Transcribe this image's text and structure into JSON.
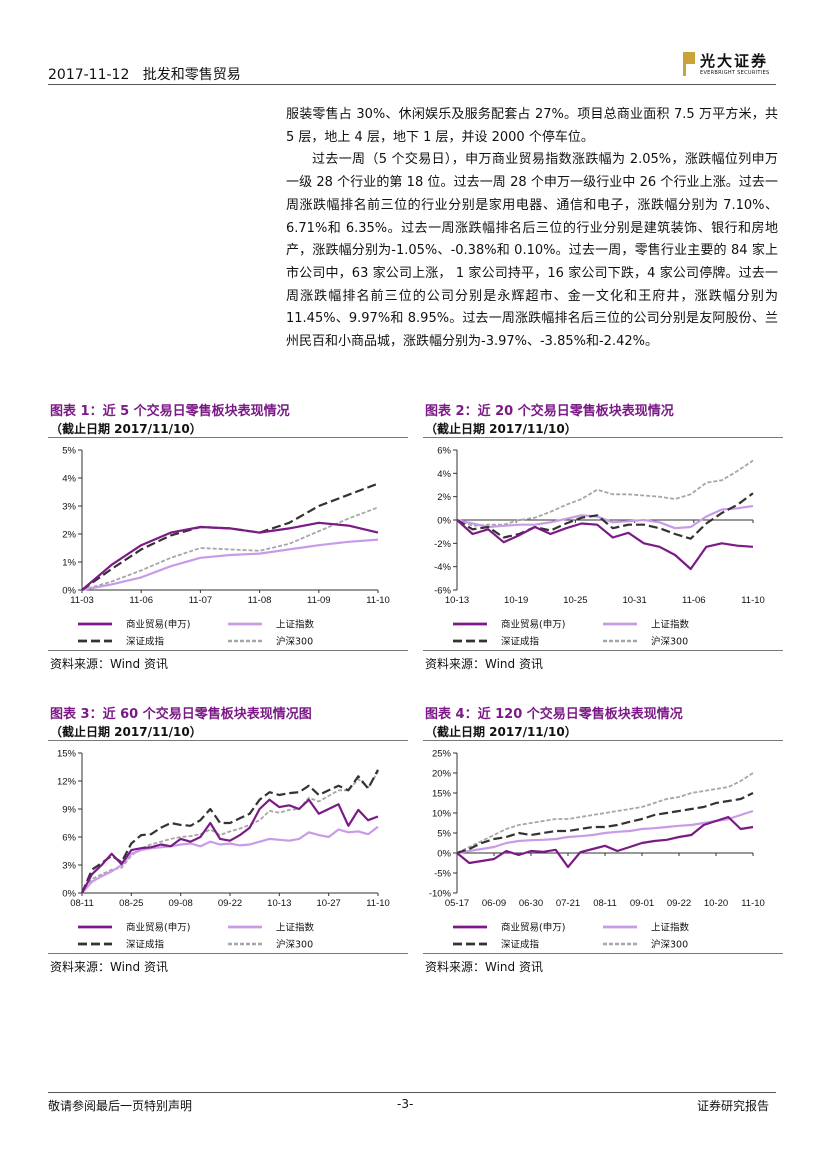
{
  "header": {
    "date": "2017-11-12",
    "title": "批发和零售贸易"
  },
  "logo": {
    "cn": "光大证券",
    "en": "EVERBRIGHT SECURITIES"
  },
  "body": {
    "p1": "服装零售占 30%、休闲娱乐及服务配套占 27%。项目总商业面积 7.5 万平方米，共 5 层，地上 4 层，地下 1 层，并设 2000 个停车位。",
    "p2": "过去一周（5 个交易日），申万商业贸易指数涨跌幅为 2.05%，涨跌幅位列申万一级 28 个行业的第 18 位。过去一周 28 个申万一级行业中 26 个行业上涨。过去一周涨跌幅排名前三位的行业分别是家用电器、通信和电子，涨跌幅分别为 7.10%、6.71%和 6.35%。过去一周涨跌幅排名后三位的行业分别是建筑装饰、银行和房地产，涨跌幅分别为-1.05%、-0.38%和 0.10%。过去一周，零售行业主要的 84 家上市公司中，63 家公司上涨， 1 家公司持平，16 家公司下跌，4 家公司停牌。过去一周涨跌幅排名前三位的公司分别是永辉超市、金一文化和王府井，涨跌幅分别为 11.45%、9.97%和 8.95%。过去一周涨跌幅排名后三位的公司分别是友阿股份、兰州民百和小商品城，涨跌幅分别为-3.97%、-3.85%和-2.42%。"
  },
  "colors": {
    "shangye": "#7b1a86",
    "shangzheng": "#c89be8",
    "shenzheng": "#333333",
    "hushen": "#a6a6a6",
    "title": "#7b1a86",
    "logo": "#c9a23a"
  },
  "charts": [
    {
      "title": "图表 1：近 5 个交易日零售板块表现情况",
      "date": "（截止日期 2017/11/10）",
      "source": "资料来源：Wind 资讯"
    },
    {
      "title": "图表 2：近 20 个交易日零售板块表现情况",
      "date": "（截止日期 2017/11/10）",
      "source": "资料来源：Wind 资讯"
    },
    {
      "title": "图表 3：近 60 个交易日零售板块表现情况图",
      "date": "（截止日期 2017/11/10）",
      "source": "资料来源：Wind 资讯"
    },
    {
      "title": "图表 4：近 120 个交易日零售板块表现情况",
      "date": "（截止日期 2017/11/10）",
      "source": "资料来源：Wind 资讯"
    }
  ],
  "chart_data": [
    {
      "type": "line",
      "title": "图表 1：近 5 个交易日零售板块表现情况",
      "categories": [
        "11-03",
        "11-06",
        "11-07",
        "11-08",
        "11-09",
        "11-10"
      ],
      "yticks": [
        "0%",
        "1%",
        "2%",
        "3%",
        "4%",
        "5%"
      ],
      "ylim": [
        0,
        5
      ],
      "legend": [
        "商业贸易(申万)",
        "上证指数",
        "深证成指",
        "沪深300"
      ],
      "series": [
        {
          "name": "商业贸易(申万)",
          "x": [
            0,
            0.5,
            1,
            1.5,
            2,
            2.5,
            3,
            3.5,
            4,
            4.5,
            5
          ],
          "values": [
            0,
            0.9,
            1.6,
            2.05,
            2.25,
            2.2,
            2.05,
            2.2,
            2.4,
            2.3,
            2.05
          ]
        },
        {
          "name": "上证指数",
          "x": [
            0,
            0.5,
            1,
            1.5,
            2,
            2.5,
            3,
            3.5,
            4,
            4.5,
            5
          ],
          "values": [
            0,
            0.2,
            0.45,
            0.85,
            1.15,
            1.25,
            1.3,
            1.45,
            1.6,
            1.72,
            1.8
          ]
        },
        {
          "name": "深证成指",
          "x": [
            0,
            0.5,
            1,
            1.5,
            2,
            2.5,
            3,
            3.5,
            4,
            4.5,
            5
          ],
          "values": [
            0,
            0.75,
            1.45,
            1.95,
            2.25,
            2.2,
            2.05,
            2.4,
            3.0,
            3.4,
            3.8
          ]
        },
        {
          "name": "沪深300",
          "x": [
            0,
            0.5,
            1,
            1.5,
            2,
            2.5,
            3,
            3.5,
            4,
            4.5,
            5
          ],
          "values": [
            0,
            0.3,
            0.7,
            1.15,
            1.5,
            1.45,
            1.4,
            1.65,
            2.1,
            2.55,
            2.95
          ]
        }
      ]
    },
    {
      "type": "line",
      "title": "图表 2：近 20 个交易日零售板块表现情况",
      "categories": [
        "10-13",
        "10-19",
        "10-25",
        "10-31",
        "11-06",
        "11-10"
      ],
      "yticks": [
        "-6%",
        "-4%",
        "-2%",
        "0%",
        "2%",
        "4%",
        "6%"
      ],
      "ylim": [
        -6,
        6
      ],
      "legend": [
        "商业贸易(申万)",
        "上证指数",
        "深证成指",
        "沪深300"
      ],
      "series": [
        {
          "name": "商业贸易(申万)",
          "x": [
            0,
            1,
            2,
            3,
            4,
            5,
            6,
            7,
            8,
            9,
            10,
            11,
            12,
            13,
            14,
            15,
            16,
            17,
            18,
            19
          ],
          "values": [
            0,
            -1.2,
            -0.8,
            -1.9,
            -1.3,
            -0.6,
            -1.2,
            -0.7,
            -0.3,
            -0.4,
            -1.5,
            -1.1,
            -2.0,
            -2.3,
            -3.0,
            -4.2,
            -2.3,
            -2.0,
            -2.2,
            -2.3
          ]
        },
        {
          "name": "上证指数",
          "x": [
            0,
            1,
            2,
            3,
            4,
            5,
            6,
            7,
            8,
            9,
            10,
            11,
            12,
            13,
            14,
            15,
            16,
            17,
            18,
            19
          ],
          "values": [
            0,
            -0.3,
            -0.6,
            -0.5,
            -0.4,
            -0.4,
            -0.2,
            0.1,
            0.4,
            0.3,
            -0.2,
            -0.1,
            0,
            -0.2,
            -0.7,
            -0.6,
            0.3,
            0.9,
            1.0,
            1.2
          ]
        },
        {
          "name": "深证成指",
          "x": [
            0,
            1,
            2,
            3,
            4,
            5,
            6,
            7,
            8,
            9,
            10,
            11,
            12,
            13,
            14,
            15,
            16,
            17,
            18,
            19
          ],
          "values": [
            0,
            -0.8,
            -0.6,
            -1.5,
            -1.2,
            -0.6,
            -0.9,
            -0.3,
            0.2,
            0.4,
            -0.7,
            -0.4,
            -0.4,
            -0.7,
            -1.2,
            -1.6,
            -0.3,
            0.6,
            1.3,
            2.3
          ]
        },
        {
          "name": "沪深300",
          "x": [
            0,
            1,
            2,
            3,
            4,
            5,
            6,
            7,
            8,
            9,
            10,
            11,
            12,
            13,
            14,
            15,
            16,
            17,
            18,
            19
          ],
          "values": [
            0,
            -0.5,
            -0.4,
            -0.4,
            0,
            0.2,
            0.7,
            1.3,
            1.8,
            2.6,
            2.2,
            2.2,
            2.1,
            2.0,
            1.8,
            2.2,
            3.2,
            3.4,
            4.2,
            5.1
          ]
        }
      ]
    },
    {
      "type": "line",
      "title": "图表 3：近 60 个交易日零售板块表现情况图",
      "categories": [
        "08-11",
        "08-25",
        "09-08",
        "09-22",
        "10-13",
        "10-27",
        "11-10"
      ],
      "yticks": [
        "0%",
        "3%",
        "6%",
        "9%",
        "12%",
        "15%"
      ],
      "ylim": [
        0,
        15
      ],
      "legend": [
        "商业贸易(申万)",
        "上证指数",
        "深证成指",
        "沪深300"
      ],
      "series": [
        {
          "name": "商业贸易(申万)",
          "x": [
            0,
            2,
            4,
            6,
            8,
            10,
            12,
            14,
            16,
            18,
            20,
            22,
            24,
            26,
            28,
            30,
            32,
            34,
            36,
            38,
            40,
            42,
            44,
            46,
            48,
            50,
            52,
            54,
            56,
            58,
            60
          ],
          "values": [
            0,
            2.0,
            3.0,
            4.2,
            3.1,
            4.6,
            4.8,
            4.9,
            5.2,
            5.0,
            5.8,
            5.5,
            6.0,
            7.5,
            5.8,
            5.6,
            6.2,
            7.0,
            9.0,
            10.0,
            9.2,
            9.4,
            9.0,
            10.0,
            8.5,
            9.0,
            9.5,
            7.2,
            8.9,
            7.8,
            8.2
          ]
        },
        {
          "name": "上证指数",
          "x": [
            0,
            2,
            4,
            6,
            8,
            10,
            12,
            14,
            16,
            18,
            20,
            22,
            24,
            26,
            28,
            30,
            32,
            34,
            36,
            38,
            40,
            42,
            44,
            46,
            48,
            50,
            52,
            54,
            56,
            58,
            60
          ],
          "values": [
            0,
            1.2,
            1.8,
            2.3,
            3.0,
            4.2,
            4.6,
            4.8,
            4.9,
            5.0,
            5.2,
            5.3,
            5.0,
            5.5,
            5.2,
            5.3,
            5.1,
            5.2,
            5.5,
            5.8,
            5.7,
            5.6,
            5.8,
            6.5,
            6.2,
            6.0,
            6.8,
            6.5,
            6.6,
            6.3,
            7.1
          ]
        },
        {
          "name": "深证成指",
          "x": [
            0,
            2,
            4,
            6,
            8,
            10,
            12,
            14,
            16,
            18,
            20,
            22,
            24,
            26,
            28,
            30,
            32,
            34,
            36,
            38,
            40,
            42,
            44,
            46,
            48,
            50,
            52,
            54,
            56,
            58,
            60
          ],
          "values": [
            0,
            2.5,
            3.2,
            4.0,
            3.3,
            5.3,
            6.2,
            6.3,
            7.0,
            7.5,
            7.3,
            7.2,
            7.8,
            9.0,
            7.5,
            7.5,
            8.0,
            8.5,
            10.0,
            10.8,
            10.5,
            10.7,
            10.8,
            11.5,
            10.5,
            11.0,
            11.5,
            11.0,
            12.5,
            11.2,
            13.2
          ]
        },
        {
          "name": "沪深300",
          "x": [
            0,
            2,
            4,
            6,
            8,
            10,
            12,
            14,
            16,
            18,
            20,
            22,
            24,
            26,
            28,
            30,
            32,
            34,
            36,
            38,
            40,
            42,
            44,
            46,
            48,
            50,
            52,
            54,
            56,
            58,
            60
          ],
          "values": [
            0,
            1.5,
            2.0,
            2.5,
            2.7,
            4.0,
            4.8,
            5.2,
            5.5,
            5.8,
            6.0,
            6.1,
            6.3,
            6.8,
            6.2,
            6.6,
            6.9,
            7.3,
            7.8,
            8.8,
            8.6,
            8.9,
            9.0,
            10.2,
            9.8,
            10.4,
            11.0,
            11.0,
            12.2,
            11.3,
            13.0
          ]
        }
      ]
    },
    {
      "type": "line",
      "title": "图表 4：近 120 个交易日零售板块表现情况",
      "categories": [
        "05-17",
        "06-09",
        "06-30",
        "07-21",
        "08-11",
        "09-01",
        "09-22",
        "10-20",
        "11-10"
      ],
      "yticks": [
        "-10%",
        "-5%",
        "0%",
        "5%",
        "10%",
        "15%",
        "20%",
        "25%"
      ],
      "ylim": [
        -10,
        25
      ],
      "legend": [
        "商业贸易(申万)",
        "上证指数",
        "深证成指",
        "沪深300"
      ],
      "series": [
        {
          "name": "商业贸易(申万)",
          "x": [
            0,
            5,
            10,
            15,
            20,
            25,
            30,
            35,
            40,
            45,
            50,
            55,
            60,
            65,
            70,
            75,
            80,
            85,
            90,
            95,
            100,
            105,
            110,
            115,
            120
          ],
          "values": [
            0,
            -2.5,
            -2.0,
            -1.5,
            0.5,
            -0.5,
            0.5,
            0.3,
            0.8,
            -3.5,
            0.2,
            1.0,
            1.8,
            0.5,
            1.5,
            2.5,
            3.0,
            3.3,
            4.0,
            4.5,
            7.0,
            8.0,
            9.0,
            6.0,
            6.5
          ]
        },
        {
          "name": "上证指数",
          "x": [
            0,
            5,
            10,
            15,
            20,
            25,
            30,
            35,
            40,
            45,
            50,
            55,
            60,
            65,
            70,
            75,
            80,
            85,
            90,
            95,
            100,
            105,
            110,
            115,
            120
          ],
          "values": [
            0,
            0.5,
            1.0,
            1.5,
            2.5,
            3.0,
            3.2,
            3.3,
            3.5,
            4.0,
            4.2,
            4.5,
            5.0,
            5.3,
            5.5,
            6.0,
            6.2,
            6.5,
            6.8,
            7.0,
            7.5,
            8.0,
            8.5,
            9.5,
            10.5
          ]
        },
        {
          "name": "深证成指",
          "x": [
            0,
            5,
            10,
            15,
            20,
            25,
            30,
            35,
            40,
            45,
            50,
            55,
            60,
            65,
            70,
            75,
            80,
            85,
            90,
            95,
            100,
            105,
            110,
            115,
            120
          ],
          "values": [
            0,
            1.0,
            2.5,
            3.5,
            4.0,
            5.0,
            4.5,
            5.0,
            5.5,
            5.5,
            6.0,
            6.5,
            6.5,
            7.0,
            7.8,
            8.5,
            9.5,
            10.0,
            10.5,
            11.0,
            11.5,
            12.5,
            13.0,
            13.5,
            15.0
          ]
        },
        {
          "name": "沪深300",
          "x": [
            0,
            5,
            10,
            15,
            20,
            25,
            30,
            35,
            40,
            45,
            50,
            55,
            60,
            65,
            70,
            75,
            80,
            85,
            90,
            95,
            100,
            105,
            110,
            115,
            120
          ],
          "values": [
            0,
            1.5,
            3.0,
            4.5,
            6.0,
            7.0,
            7.5,
            8.0,
            8.5,
            8.5,
            9.0,
            9.5,
            10.0,
            10.5,
            11.0,
            11.5,
            12.5,
            13.5,
            14.0,
            15.0,
            15.5,
            16.0,
            16.5,
            18.0,
            20.0
          ]
        }
      ]
    }
  ],
  "footer": {
    "left": "敬请参阅最后一页特别声明",
    "page": "-3-",
    "right": "证券研究报告"
  }
}
